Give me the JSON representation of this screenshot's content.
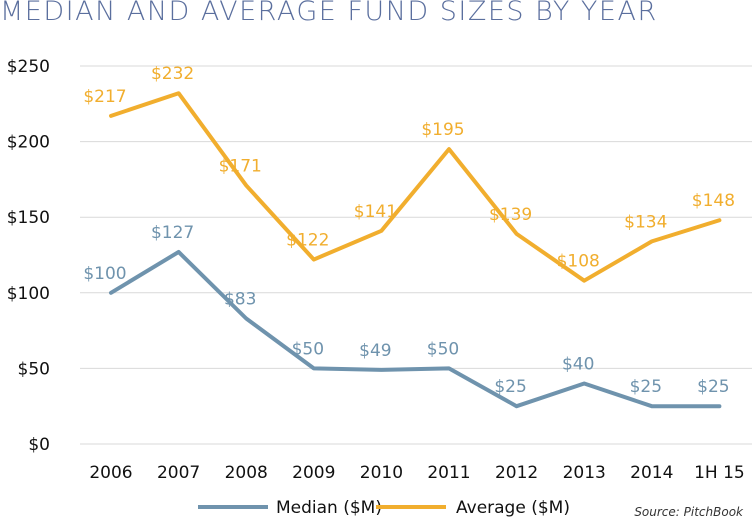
{
  "chart_data": {
    "type": "line",
    "title": "MEDIAN AND AVERAGE FUND SIZES BY YEAR",
    "categories": [
      "2006",
      "2007",
      "2008",
      "2009",
      "2010",
      "2011",
      "2012",
      "2013",
      "2014",
      "1H 15"
    ],
    "series": [
      {
        "name": "Median ($M)",
        "color": "#6f93ad",
        "values": [
          100,
          127,
          83,
          50,
          49,
          50,
          25,
          40,
          25,
          25
        ],
        "labels": [
          "$100",
          "$127",
          "$83",
          "$50",
          "$49",
          "$50",
          "$25",
          "$40",
          "$25",
          "$25"
        ]
      },
      {
        "name": "Average ($M)",
        "color": "#f1ae2e",
        "values": [
          217,
          232,
          171,
          122,
          141,
          195,
          139,
          108,
          134,
          148
        ],
        "labels": [
          "$217",
          "$232",
          "$171",
          "$122",
          "$141",
          "$195",
          "$139",
          "$108",
          "$134",
          "$148"
        ]
      }
    ],
    "yticks": [
      "$0",
      "$50",
      "$100",
      "$150",
      "$200",
      "$250"
    ],
    "ylim": [
      0,
      250
    ],
    "grid": true,
    "legend": "bottom",
    "source": "Source: PitchBook"
  }
}
